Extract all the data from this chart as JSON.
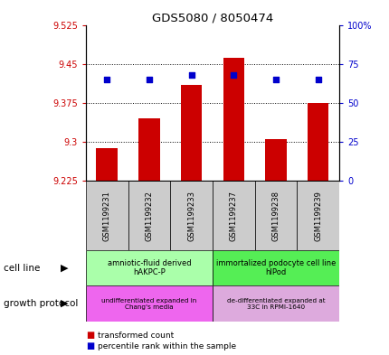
{
  "title": "GDS5080 / 8050474",
  "samples": [
    "GSM1199231",
    "GSM1199232",
    "GSM1199233",
    "GSM1199237",
    "GSM1199238",
    "GSM1199239"
  ],
  "transformed_counts": [
    9.289,
    9.345,
    9.41,
    9.462,
    9.305,
    9.375
  ],
  "percentile_ranks": [
    65,
    65,
    68,
    68,
    65,
    65
  ],
  "y_min": 9.225,
  "y_max": 9.525,
  "y_ticks": [
    9.225,
    9.3,
    9.375,
    9.45,
    9.525
  ],
  "y_tick_labels": [
    "9.225",
    "9.3",
    "9.375",
    "9.45",
    "9.525"
  ],
  "y2_ticks": [
    0,
    25,
    50,
    75,
    100
  ],
  "y2_tick_labels": [
    "0",
    "25",
    "50",
    "75",
    "100%"
  ],
  "bar_color": "#cc0000",
  "dot_color": "#0000cc",
  "bar_bottom": 9.225,
  "cell_line_labels": [
    "amniotic-fluid derived\nhAKPC-P",
    "immortalized podocyte cell line\nhIPod"
  ],
  "cell_line_colors": [
    "#aaffaa",
    "#55ee55"
  ],
  "growth_protocol_labels": [
    "undifferentiated expanded in\nChang's media",
    "de-differentiated expanded at\n33C in RPMI-1640"
  ],
  "growth_protocol_colors": [
    "#ee66ee",
    "#ddaadd"
  ],
  "group1_samples": [
    0,
    1,
    2
  ],
  "group2_samples": [
    3,
    4,
    5
  ],
  "xlabel_cell_line": "cell line",
  "xlabel_growth": "growth protocol",
  "legend_red": "transformed count",
  "legend_blue": "percentile rank within the sample",
  "tick_label_color_left": "#cc0000",
  "tick_label_color_right": "#0000cc",
  "bg_xtick": "#cccccc"
}
